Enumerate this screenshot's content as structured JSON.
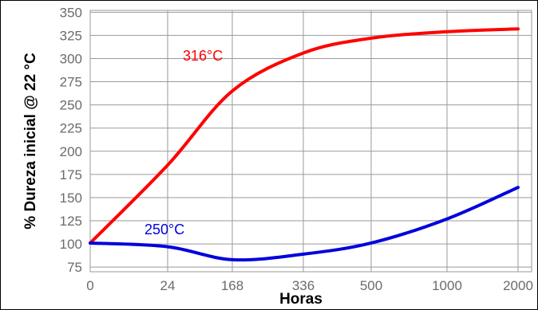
{
  "chart_data": {
    "type": "line",
    "xlabel": "Horas",
    "ylabel": "% Dureza inicial @ 22 °C",
    "x_tick_labels": [
      "0",
      "24",
      "168",
      "336",
      "500",
      "1000",
      "2000"
    ],
    "y_ticks": [
      75,
      100,
      125,
      150,
      175,
      200,
      225,
      250,
      275,
      300,
      325,
      350
    ],
    "ylim": [
      70,
      352
    ],
    "grid": true,
    "series": [
      {
        "name": "316°C",
        "color": "#ff0000",
        "points": [
          {
            "x": "0",
            "y": 101
          },
          {
            "x": "24",
            "y": 185
          },
          {
            "x": "168",
            "y": 265
          },
          {
            "x": "336",
            "y": 306
          },
          {
            "x": "500",
            "y": 322
          },
          {
            "x": "1000",
            "y": 329
          },
          {
            "x": "2000",
            "y": 332
          }
        ]
      },
      {
        "name": "250°C",
        "color": "#0000dd",
        "points": [
          {
            "x": "0",
            "y": 101
          },
          {
            "x": "24",
            "y": 97
          },
          {
            "x": "168",
            "y": 83
          },
          {
            "x": "336",
            "y": 89
          },
          {
            "x": "500",
            "y": 101
          },
          {
            "x": "1000",
            "y": 127
          },
          {
            "x": "2000",
            "y": 161
          }
        ]
      }
    ]
  }
}
